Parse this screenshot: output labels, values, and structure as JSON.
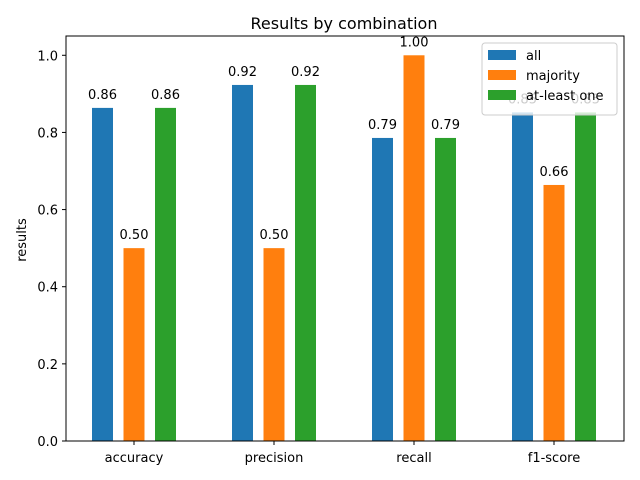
{
  "chart_data": {
    "type": "bar",
    "title": "Results by combination",
    "xlabel": "",
    "ylabel": "results",
    "categories": [
      "accuracy",
      "precision",
      "recall",
      "f1-score"
    ],
    "series": [
      {
        "name": "all",
        "color": "#1f77b4",
        "values": [
          0.8636,
          0.9231,
          0.7857,
          0.8519
        ],
        "labels": [
          "0.86",
          "0.92",
          "0.79",
          "0.85"
        ]
      },
      {
        "name": "majority",
        "color": "#ff7f0e",
        "values": [
          0.5,
          0.5,
          1.0,
          0.6638
        ],
        "labels": [
          "0.50",
          "0.50",
          "1.00",
          "0.66"
        ]
      },
      {
        "name": "at-least one",
        "color": "#2ca02c",
        "values": [
          0.8636,
          0.9231,
          0.7857,
          0.8519
        ],
        "labels": [
          "0.86",
          "0.92",
          "0.79",
          "0.85"
        ]
      }
    ],
    "ylim": [
      0,
      1.05
    ],
    "yticks": [
      "0.0",
      "0.2",
      "0.4",
      "0.6",
      "0.8",
      "1.0"
    ],
    "grid": false,
    "legend_position": "upper right"
  }
}
